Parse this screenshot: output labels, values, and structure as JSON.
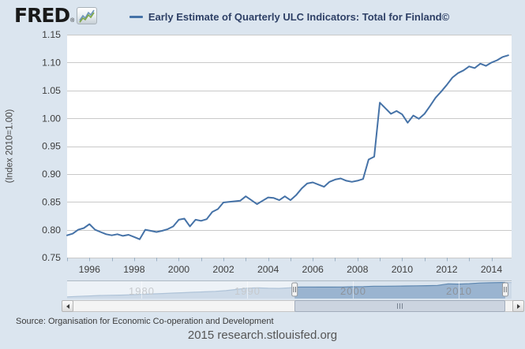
{
  "header": {
    "logo": "FRED",
    "registered_mark": "®",
    "series_title": "Early Estimate of Quarterly ULC Indicators: Total for Finland©"
  },
  "chart_data": {
    "type": "line",
    "title": "Early Estimate of Quarterly ULC Indicators: Total for Finland©",
    "ylabel": "(Index 2010=1.00)",
    "xlabel": "",
    "ylim": [
      0.75,
      1.15
    ],
    "xlim": [
      1995.0,
      2014.9
    ],
    "y_ticks": [
      0.75,
      0.8,
      0.85,
      0.9,
      0.95,
      1.0,
      1.05,
      1.1,
      1.15
    ],
    "x_ticks": [
      1996,
      1998,
      2000,
      2002,
      2004,
      2006,
      2008,
      2010,
      2012,
      2014
    ],
    "grid": "horizontal",
    "legend_position": "top",
    "line_color": "#4572a7",
    "series": [
      {
        "name": "Early Estimate of Quarterly ULC Indicators: Total for Finland©",
        "frequency": "quarterly",
        "start": 1995.0,
        "step": 0.25,
        "values": [
          0.79,
          0.793,
          0.8,
          0.803,
          0.81,
          0.8,
          0.796,
          0.792,
          0.79,
          0.792,
          0.789,
          0.791,
          0.787,
          0.783,
          0.8,
          0.798,
          0.796,
          0.798,
          0.801,
          0.806,
          0.818,
          0.82,
          0.806,
          0.818,
          0.816,
          0.819,
          0.832,
          0.837,
          0.849,
          0.85,
          0.851,
          0.852,
          0.86,
          0.853,
          0.846,
          0.852,
          0.858,
          0.857,
          0.853,
          0.86,
          0.853,
          0.862,
          0.874,
          0.883,
          0.885,
          0.881,
          0.877,
          0.886,
          0.89,
          0.892,
          0.888,
          0.886,
          0.888,
          0.891,
          0.926,
          0.931,
          1.028,
          1.018,
          1.008,
          1.013,
          1.007,
          0.992,
          1.005,
          0.999,
          1.008,
          1.022,
          1.037,
          1.048,
          1.06,
          1.073,
          1.081,
          1.086,
          1.093,
          1.09,
          1.098,
          1.094,
          1.1,
          1.104,
          1.11,
          1.113
        ]
      }
    ]
  },
  "navigator": {
    "type": "area",
    "xlim": [
      1973,
      2015
    ],
    "ylim": [
      0,
      1.25
    ],
    "x_ticks": [
      1980,
      1990,
      2000,
      2010
    ],
    "selected_range": [
      1994.5,
      2014.4
    ],
    "area_color": "#8aa8c8",
    "edge_color": "#5e87b0",
    "series": {
      "frequency": "yearly",
      "start": 1973,
      "step": 1,
      "values": [
        0.12,
        0.15,
        0.18,
        0.21,
        0.23,
        0.24,
        0.26,
        0.29,
        0.32,
        0.35,
        0.38,
        0.41,
        0.44,
        0.47,
        0.5,
        0.55,
        0.63,
        0.72,
        0.74,
        0.71,
        0.7,
        0.74,
        0.797,
        0.8,
        0.791,
        0.792,
        0.8,
        0.816,
        0.826,
        0.851,
        0.853,
        0.857,
        0.868,
        0.882,
        0.889,
        0.909,
        1.017,
        1.001,
        1.029,
        1.075,
        1.094,
        1.107,
        1.11
      ]
    }
  },
  "scrollbar": {
    "left_arrow_icon": "left-arrow-icon",
    "right_arrow_icon": "right-arrow-icon",
    "grip_icon": "grip-icon"
  },
  "colors": {
    "page_background": "#dbe5ef",
    "plot_background": "#ffffff",
    "gridline": "#c9c9c9",
    "tick_mark": "#9bb0c3",
    "title_text": "#2e4066",
    "nav_label": "#8d939b"
  },
  "footer": {
    "source_label": "Source: Organisation for Economic Co-operation and Development",
    "branding": "2015 research.stlouisfed.org"
  }
}
